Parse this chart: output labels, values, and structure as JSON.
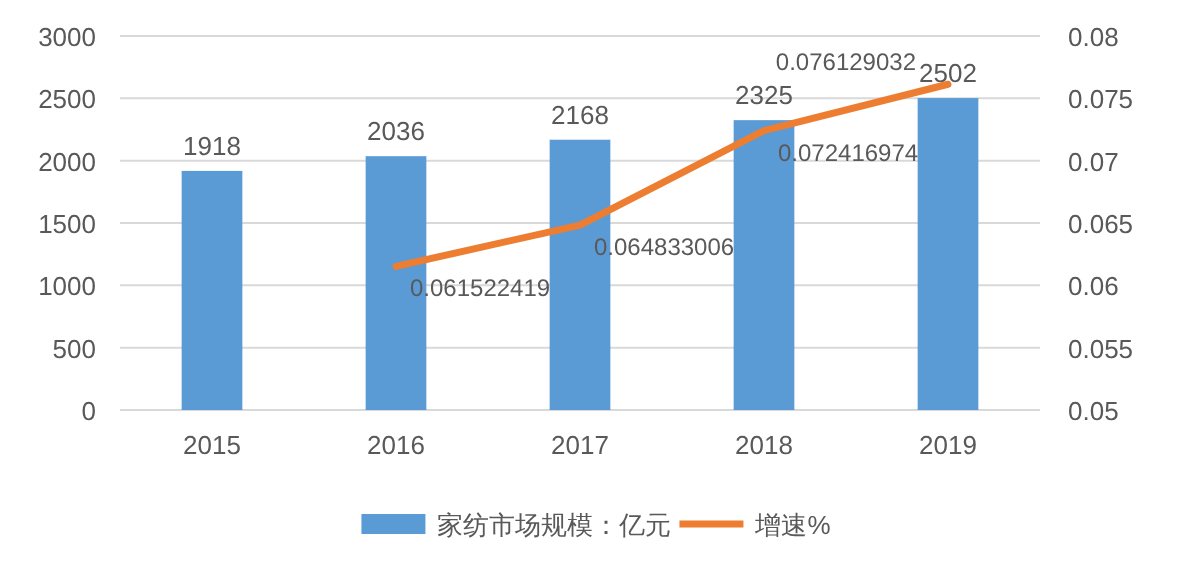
{
  "chart_data": {
    "type": "bar",
    "categories": [
      "2015",
      "2016",
      "2017",
      "2018",
      "2019"
    ],
    "series": [
      {
        "name": "家纺市场规模：亿元",
        "color": "#5b9bd5",
        "values": [
          1918,
          2036,
          2168,
          2325,
          2502
        ]
      },
      {
        "name": "增速%",
        "type": "line",
        "axis": "y2",
        "color": "#ed7d31",
        "values": [
          null,
          0.061522419,
          0.064833006,
          0.072416974,
          0.076129032
        ]
      }
    ],
    "ylim": [
      0,
      3000
    ],
    "yticks": [
      0,
      500,
      1000,
      1500,
      2000,
      2500,
      3000
    ],
    "y2lim": [
      0.05,
      0.08
    ],
    "y2ticks": [
      0.05,
      0.055,
      0.06,
      0.065,
      0.07,
      0.075,
      0.08
    ],
    "grid": "y",
    "legend": "bottom",
    "data_labels": true
  }
}
